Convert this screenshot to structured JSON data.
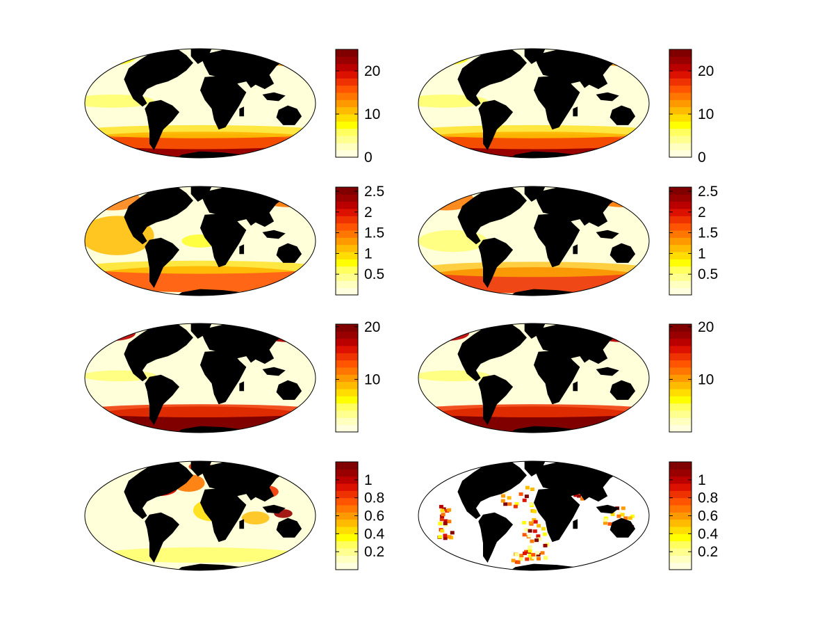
{
  "figure": {
    "panels": [
      {
        "id": "r1c1",
        "style": "polar-heavy",
        "colorbar": {
          "max": 25,
          "ticks": [
            "0",
            "10",
            "20"
          ],
          "tick_values": [
            0,
            10,
            20
          ]
        }
      },
      {
        "id": "r1c2",
        "style": "polar-heavy",
        "colorbar": {
          "max": 25,
          "ticks": [
            "0",
            "10",
            "20"
          ],
          "tick_values": [
            0,
            10,
            20
          ]
        }
      },
      {
        "id": "r2c1",
        "style": "pacific-mid",
        "colorbar": {
          "max": 2.6,
          "ticks": [
            "0.5",
            "1",
            "1.5",
            "2",
            "2.5"
          ],
          "tick_values": [
            0.5,
            1,
            1.5,
            2,
            2.5
          ]
        }
      },
      {
        "id": "r2c2",
        "style": "south-mid",
        "colorbar": {
          "max": 2.6,
          "ticks": [
            "0.5",
            "1",
            "1.5",
            "2",
            "2.5"
          ],
          "tick_values": [
            0.5,
            1,
            1.5,
            2,
            2.5
          ]
        }
      },
      {
        "id": "r3c1",
        "style": "south-saturated",
        "colorbar": {
          "max": 20.5,
          "ticks": [
            "10",
            "20"
          ],
          "tick_values": [
            10,
            20
          ]
        }
      },
      {
        "id": "r3c2",
        "style": "south-saturated",
        "colorbar": {
          "max": 20.5,
          "ticks": [
            "10",
            "20"
          ],
          "tick_values": [
            10,
            20
          ]
        }
      },
      {
        "id": "r4c1",
        "style": "coastal",
        "colorbar": {
          "max": 1.2,
          "ticks": [
            "0.2",
            "0.4",
            "0.6",
            "0.8",
            "1"
          ],
          "tick_values": [
            0.2,
            0.4,
            0.6,
            0.8,
            1
          ]
        }
      },
      {
        "id": "r4c2",
        "style": "sparse-pixels",
        "colorbar": {
          "max": 1.2,
          "ticks": [
            "0.2",
            "0.4",
            "0.6",
            "0.8",
            "1"
          ],
          "tick_values": [
            0.2,
            0.4,
            0.6,
            0.8,
            1
          ]
        }
      }
    ],
    "colormap": [
      "#ffffe0",
      "#ffffc0",
      "#ffff90",
      "#ffff60",
      "#ffff00",
      "#ffdd00",
      "#ffbb00",
      "#ff9900",
      "#ff7700",
      "#ff5500",
      "#ee3300",
      "#dd1100",
      "#bb0000",
      "#990000",
      "#800000"
    ],
    "land_color": "#000000",
    "ocean_base": "#ffffd9"
  }
}
